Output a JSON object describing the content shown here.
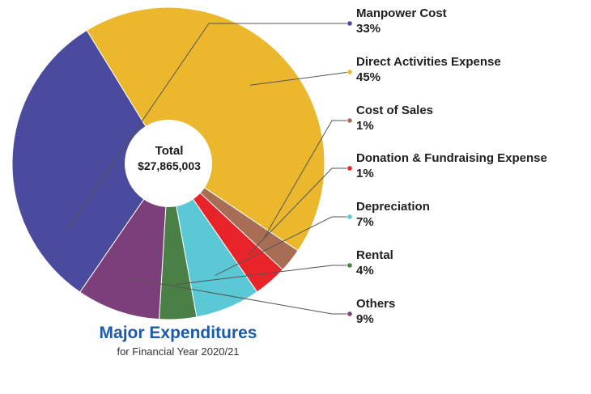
{
  "chart_data": {
    "type": "pie",
    "style": "donut",
    "center_label": "Total",
    "center_value": "$27,865,003",
    "title": "Major Expenditures",
    "subtitle": "for Financial Year 2020/21",
    "legend_position": "right",
    "slices": [
      {
        "name": "Manpower Cost",
        "label": "33%",
        "value": 33,
        "color": "#4a4a9e"
      },
      {
        "name": "Direct Activities Expense",
        "label": "45%",
        "value": 45,
        "color": "#ebb82d"
      },
      {
        "name": "Cost of Sales",
        "label": "1%",
        "value": 1,
        "color": "#a86e55"
      },
      {
        "name": "Donation & Fundraising Expense",
        "label": "1%",
        "value": 1,
        "color": "#e8232a"
      },
      {
        "name": "Depreciation",
        "label": "7%",
        "value": 7,
        "color": "#5bc8d6"
      },
      {
        "name": "Rental",
        "label": "4%",
        "value": 4,
        "color": "#4a7f45"
      },
      {
        "name": "Others",
        "label": "9%",
        "value": 9,
        "color": "#7b3f7a"
      }
    ]
  }
}
